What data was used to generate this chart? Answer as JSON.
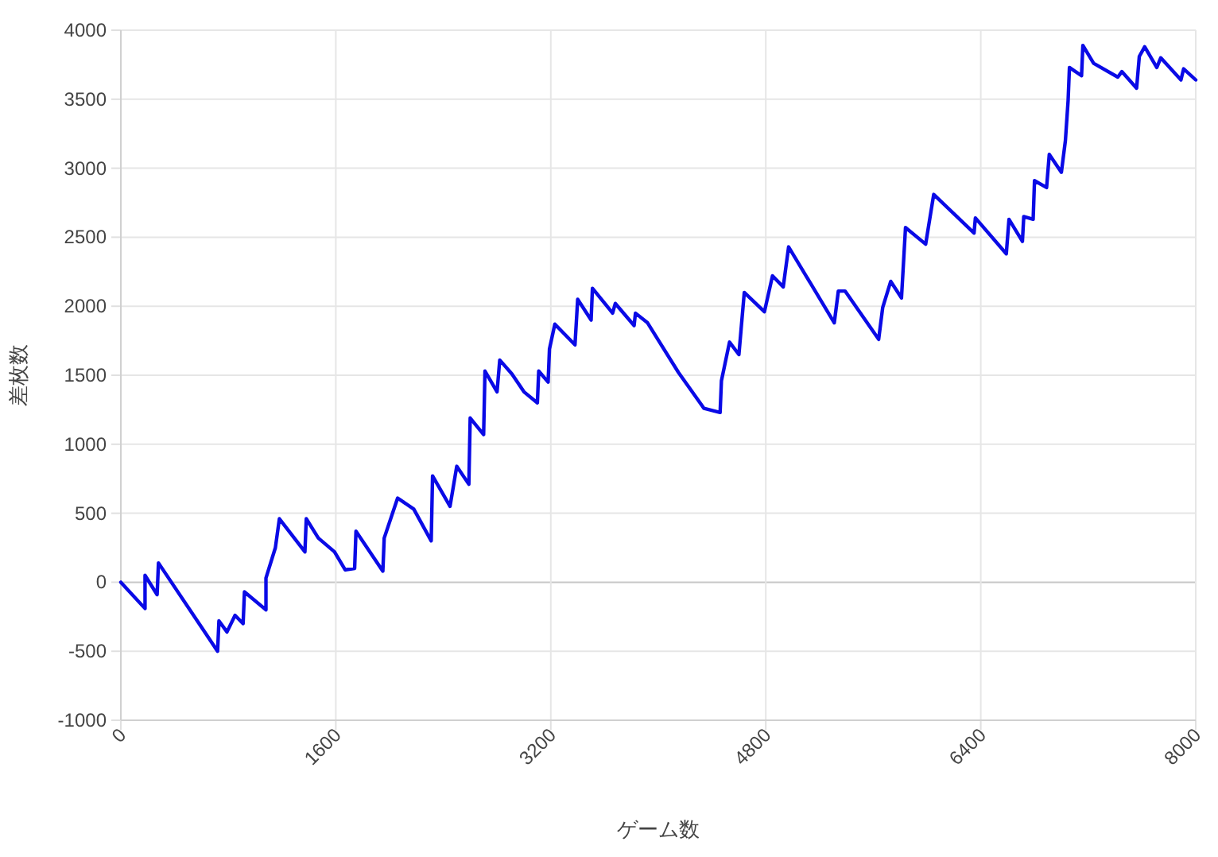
{
  "chart_data": {
    "type": "line",
    "xlabel": "ゲーム数",
    "ylabel": "差枚数",
    "xlim": [
      0,
      8000
    ],
    "ylim": [
      -1000,
      4000
    ],
    "xticks": [
      0,
      1600,
      3200,
      4800,
      6400,
      8000
    ],
    "yticks": [
      -1000,
      -500,
      0,
      500,
      1000,
      1500,
      2000,
      2500,
      3000,
      3500,
      4000
    ],
    "grid": true,
    "x": [
      0,
      180,
      180,
      270,
      280,
      720,
      730,
      790,
      850,
      910,
      920,
      1080,
      1080,
      1150,
      1180,
      1370,
      1380,
      1470,
      1590,
      1670,
      1740,
      1750,
      1950,
      1960,
      2060,
      2180,
      2310,
      2320,
      2450,
      2500,
      2590,
      2600,
      2700,
      2710,
      2800,
      2820,
      2910,
      3000,
      3100,
      3110,
      3180,
      3190,
      3230,
      3380,
      3400,
      3500,
      3510,
      3660,
      3680,
      3820,
      3830,
      3920,
      4150,
      4340,
      4460,
      4470,
      4530,
      4600,
      4640,
      4790,
      4850,
      4930,
      4970,
      5310,
      5340,
      5390,
      5640,
      5670,
      5730,
      5810,
      5840,
      5990,
      6050,
      6350,
      6360,
      6590,
      6610,
      6710,
      6720,
      6790,
      6800,
      6890,
      6910,
      7000,
      7030,
      7050,
      7060,
      7150,
      7160,
      7240,
      7420,
      7450,
      7560,
      7580,
      7620,
      7710,
      7740,
      7890,
      7910,
      8000
    ],
    "series": [
      {
        "color": "#0a0ae6",
        "values": [
          0,
          -190,
          50,
          -90,
          140,
          -500,
          -280,
          -360,
          -240,
          -300,
          -70,
          -200,
          30,
          250,
          460,
          220,
          460,
          320,
          220,
          90,
          100,
          370,
          80,
          320,
          610,
          530,
          300,
          770,
          550,
          840,
          710,
          1190,
          1070,
          1530,
          1380,
          1610,
          1510,
          1380,
          1300,
          1530,
          1450,
          1690,
          1870,
          1720,
          2050,
          1900,
          2130,
          1950,
          2020,
          1860,
          1950,
          1880,
          1520,
          1260,
          1230,
          1460,
          1740,
          1650,
          2100,
          1960,
          2220,
          2140,
          2430,
          1880,
          2110,
          2110,
          1760,
          1990,
          2180,
          2060,
          2570,
          2450,
          2810,
          2530,
          2640,
          2380,
          2630,
          2470,
          2650,
          2630,
          2910,
          2860,
          3100,
          2970,
          3200,
          3490,
          3730,
          3670,
          3890,
          3760,
          3660,
          3700,
          3580,
          3810,
          3880,
          3730,
          3800,
          3640,
          3720,
          3640
        ]
      }
    ]
  }
}
